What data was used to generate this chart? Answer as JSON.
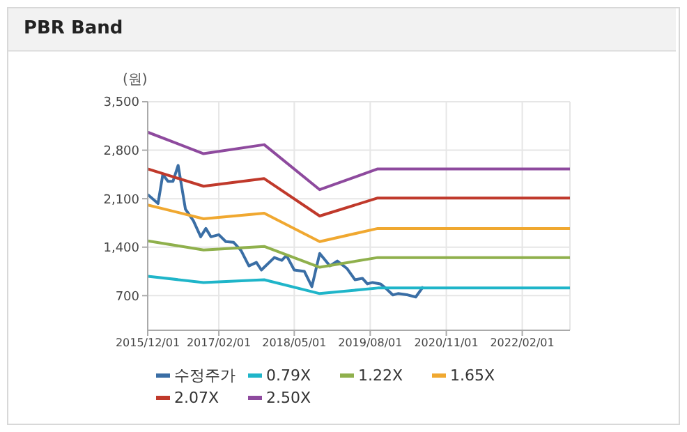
{
  "chart_data": {
    "type": "line",
    "title": "PBR Band",
    "ylabel": "(원)",
    "xlim": [
      "2015-12-01",
      "2022-11-15"
    ],
    "xticks": [
      {
        "value": "2015-12-01",
        "label": "2015/12/01"
      },
      {
        "value": "2017-02-01",
        "label": "2017/02/01"
      },
      {
        "value": "2018-05-01",
        "label": "2018/05/01"
      },
      {
        "value": "2019-08-01",
        "label": "2019/08/01"
      },
      {
        "value": "2020-11-01",
        "label": "2020/11/01"
      },
      {
        "value": "2022-02-01",
        "label": "2022/02/01"
      }
    ],
    "ylim": [
      200,
      3500
    ],
    "yticks": [
      700,
      {
        "value": 1400,
        "label": "1,400"
      },
      {
        "value": 2100,
        "label": "2,100"
      },
      {
        "value": 2800,
        "label": "2,800"
      },
      {
        "value": 3500,
        "label": "3,500"
      }
    ],
    "grid": true,
    "legend": "bottom",
    "marker": "none",
    "line_style": "solid",
    "series": [
      {
        "name": "수정주가",
        "color": "#3a6ea5",
        "x": [
          "2015-12-01",
          "2016-02-01",
          "2016-03-01",
          "2016-04-01",
          "2016-05-01",
          "2016-06-01",
          "2016-06-20",
          "2016-07-15",
          "2016-09-01",
          "2016-10-15",
          "2016-11-15",
          "2016-12-15",
          "2017-02-01",
          "2017-03-15",
          "2017-05-01",
          "2017-06-15",
          "2017-08-01",
          "2017-09-15",
          "2017-10-15",
          "2018-01-01",
          "2018-02-15",
          "2018-03-15",
          "2018-05-01",
          "2018-07-01",
          "2018-08-15",
          "2018-10-01",
          "2018-12-01",
          "2019-01-15",
          "2019-03-15",
          "2019-05-01",
          "2019-06-15",
          "2019-07-15",
          "2019-08-15",
          "2019-10-01",
          "2019-11-01",
          "2019-12-15",
          "2020-01-15",
          "2020-03-15",
          "2020-05-01",
          "2020-06-15"
        ],
        "values": [
          2160,
          2030,
          2450,
          2350,
          2350,
          2580,
          2310,
          1950,
          1780,
          1550,
          1670,
          1550,
          1580,
          1480,
          1470,
          1350,
          1130,
          1180,
          1070,
          1250,
          1210,
          1280,
          1070,
          1050,
          830,
          1310,
          1130,
          1200,
          1090,
          930,
          950,
          870,
          890,
          870,
          810,
          710,
          730,
          710,
          680,
          830
        ]
      },
      {
        "name": "0.79X",
        "color": "#1fb5c9",
        "x": [
          "2015-12-01",
          "2016-11-01",
          "2017-11-01",
          "2018-10-01",
          "2019-09-15",
          "2022-11-15"
        ],
        "values": [
          980,
          890,
          930,
          730,
          810,
          810
        ]
      },
      {
        "name": "1.22X",
        "color": "#8fb04c",
        "x": [
          "2015-12-01",
          "2016-11-01",
          "2017-11-01",
          "2018-10-01",
          "2019-09-15",
          "2022-11-15"
        ],
        "values": [
          1490,
          1360,
          1410,
          1110,
          1250,
          1250
        ]
      },
      {
        "name": "1.65X",
        "color": "#f0a830",
        "x": [
          "2015-12-01",
          "2016-11-01",
          "2017-11-01",
          "2018-10-01",
          "2019-09-15",
          "2022-11-15"
        ],
        "values": [
          2010,
          1810,
          1890,
          1480,
          1670,
          1670
        ]
      },
      {
        "name": "2.07X",
        "color": "#c0392b",
        "x": [
          "2015-12-01",
          "2016-11-01",
          "2017-11-01",
          "2018-10-01",
          "2019-09-15",
          "2022-11-15"
        ],
        "values": [
          2530,
          2280,
          2390,
          1850,
          2110,
          2110
        ]
      },
      {
        "name": "2.50X",
        "color": "#8e4a9e",
        "x": [
          "2015-12-01",
          "2016-11-01",
          "2017-11-01",
          "2018-10-01",
          "2019-09-15",
          "2022-11-15"
        ],
        "values": [
          3060,
          2750,
          2880,
          2230,
          2530,
          2530
        ]
      }
    ]
  }
}
